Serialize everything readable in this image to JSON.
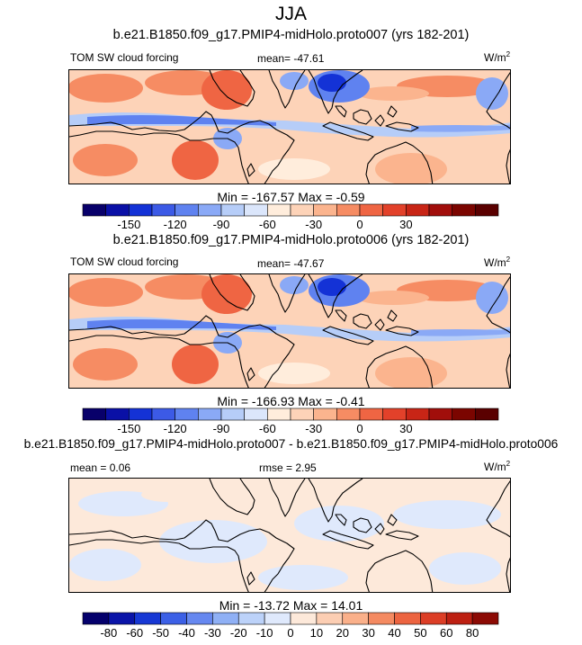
{
  "title": "JJA",
  "colors": {
    "diverging_18": [
      "#08006a",
      "#0a10a6",
      "#1432d6",
      "#3c5ae6",
      "#5f82f0",
      "#8aa9f6",
      "#b6cdf8",
      "#dbe6fb",
      "#ffeddc",
      "#fdd3b8",
      "#fbb48e",
      "#f68c63",
      "#ef6543",
      "#e2412a",
      "#c82516",
      "#a10e0b",
      "#7b0500",
      "#5a0000"
    ],
    "diverging_16": [
      "#04006c",
      "#0a14a8",
      "#1738d4",
      "#3c60e6",
      "#6688f0",
      "#8fb0f5",
      "#bcd2f9",
      "#dfe9fc",
      "#fde9da",
      "#fcceb3",
      "#fab08a",
      "#f48a61",
      "#ec6440",
      "#dc3e26",
      "#bd2012",
      "#8c0a04"
    ],
    "land_outline": "#000000"
  },
  "chart_data": [
    {
      "type": "heatmap",
      "title": "b.e21.B1850.f09_g17.PMIP4-midHolo.proto007 (yrs 182-201)",
      "variable": "TOM SW cloud forcing",
      "mean_label": "mean= -47.61",
      "units": "W/m",
      "units_exp": "2",
      "min": -167.57,
      "max": -0.59,
      "minmax_text": "Min = -167.57 Max =  -0.59",
      "colorbar_levels": [
        -150,
        -120,
        -90,
        -60,
        -30,
        0,
        30
      ],
      "colorbar_labels": [
        "-150",
        "-120",
        "-90",
        "-60",
        "-30",
        "0",
        "30"
      ]
    },
    {
      "type": "heatmap",
      "title": "b.e21.B1850.f09_g17.PMIP4-midHolo.proto006 (yrs 182-201)",
      "variable": "TOM SW cloud forcing",
      "mean_label": "mean= -47.67",
      "units": "W/m",
      "units_exp": "2",
      "min": -166.93,
      "max": -0.41,
      "minmax_text": "Min = -166.93 Max =  -0.41",
      "colorbar_levels": [
        -150,
        -120,
        -90,
        -60,
        -30,
        0,
        30
      ],
      "colorbar_labels": [
        "-150",
        "-120",
        "-90",
        "-60",
        "-30",
        "0",
        "30"
      ]
    },
    {
      "type": "heatmap",
      "title": "b.e21.B1850.f09_g17.PMIP4-midHolo.proto007 - b.e21.B1850.f09_g17.PMIP4-midHolo.proto006",
      "mean_label": "mean =  0.06",
      "rmse_label": "rmse =  2.95",
      "units": "W/m",
      "units_exp": "2",
      "min": -13.72,
      "max": 14.01,
      "minmax_text": "Min = -13.72 Max =  14.01",
      "colorbar_levels": [
        -80,
        -60,
        -50,
        -40,
        -30,
        -20,
        -10,
        0,
        10,
        20,
        30,
        40,
        50,
        60,
        80
      ],
      "colorbar_labels": [
        "-80",
        "-60",
        "-50",
        "-40",
        "-30",
        "-20",
        "-10",
        "0",
        "10",
        "20",
        "30",
        "40",
        "50",
        "60",
        "80"
      ]
    }
  ]
}
